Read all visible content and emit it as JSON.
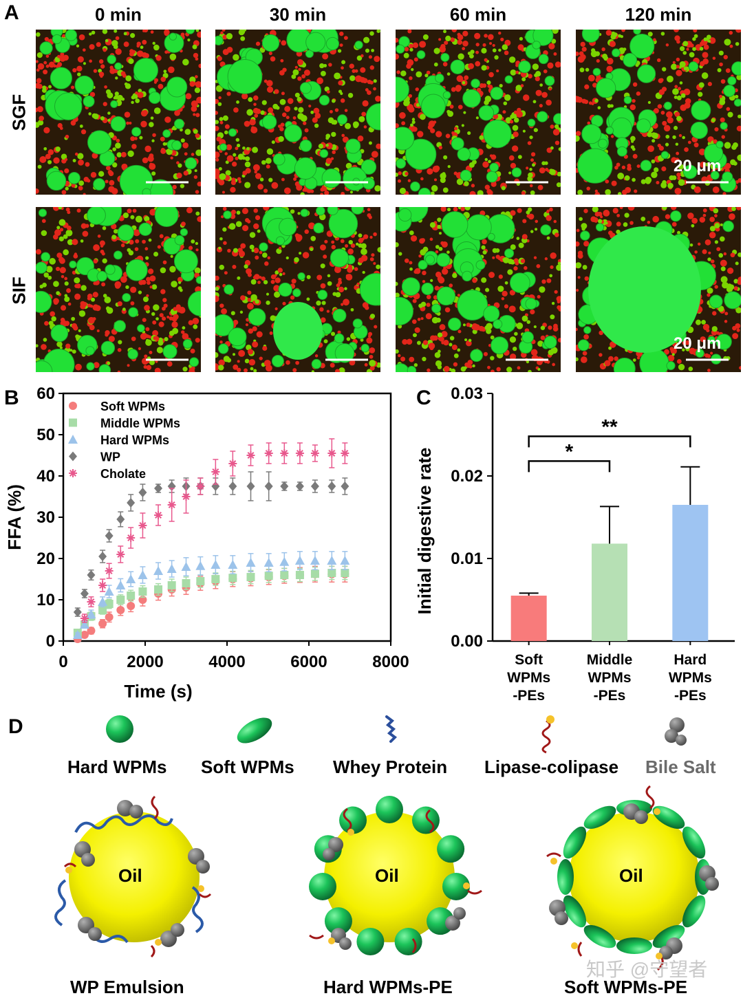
{
  "panelA": {
    "letter": "A",
    "columns": [
      "0 min",
      "30 min",
      "60 min",
      "120 min"
    ],
    "rows": [
      "SGF",
      "SIF"
    ],
    "scale_bar": "20 μm"
  },
  "panelB": {
    "letter": "B"
  },
  "panelC": {
    "letter": "C"
  },
  "panelD": {
    "letter": "D",
    "legend": [
      {
        "key": "hard",
        "label": "Hard WPMs"
      },
      {
        "key": "soft",
        "label": "Soft WPMs"
      },
      {
        "key": "whey",
        "label": "Whey Protein"
      },
      {
        "key": "lipase",
        "label": "Lipase-colipase"
      },
      {
        "key": "bile",
        "label": "Bile Salt"
      }
    ],
    "oil_label": "Oil",
    "emulsions": [
      "WP Emulsion",
      "Hard WPMs-PE",
      "Soft WPMs-PE"
    ]
  },
  "watermark": "知乎 @守望者",
  "chart_data": [
    {
      "id": "B",
      "type": "scatter",
      "title": "",
      "xlabel": "Time (s)",
      "ylabel": "FFA (%)",
      "xlim": [
        0,
        8000
      ],
      "ylim": [
        0,
        60
      ],
      "xticks": [
        0,
        2000,
        4000,
        6000,
        8000
      ],
      "yticks": [
        0,
        10,
        20,
        30,
        40,
        50,
        60
      ],
      "legend_position": "top-left",
      "series": [
        {
          "name": "Soft WPMs",
          "color": "#f47c7c",
          "marker": "circle",
          "x": [
            350,
            520,
            680,
            960,
            1120,
            1400,
            1650,
            1940,
            2320,
            2650,
            3000,
            3350,
            3720,
            4140,
            4580,
            5020,
            5400,
            5780,
            6150,
            6560,
            6880
          ],
          "y": [
            0.5,
            1.5,
            2.5,
            4.2,
            5.8,
            7.5,
            8.5,
            10,
            11.5,
            12.5,
            13,
            14,
            14.5,
            15,
            15.2,
            15.5,
            15.8,
            16,
            16.2,
            16.2,
            16.2
          ],
          "err": [
            0.5,
            0.6,
            0.8,
            1,
            1.2,
            1.3,
            1.4,
            1.5,
            1.6,
            1.6,
            1.7,
            1.7,
            1.8,
            1.8,
            1.8,
            1.8,
            1.8,
            1.8,
            1.9,
            1.9,
            1.9
          ]
        },
        {
          "name": "Middle WPMs",
          "color": "#a7dca7",
          "marker": "square",
          "x": [
            350,
            520,
            680,
            960,
            1120,
            1400,
            1650,
            1940,
            2320,
            2650,
            3000,
            3350,
            3720,
            4140,
            4580,
            5020,
            5400,
            5780,
            6150,
            6560,
            6880
          ],
          "y": [
            2,
            4,
            6,
            7.5,
            9,
            10,
            11,
            12,
            12.5,
            13.5,
            14,
            14.5,
            15,
            15.3,
            15.5,
            15.8,
            16,
            16,
            16.3,
            16.5,
            16.5
          ],
          "err": [
            0.6,
            0.8,
            1,
            1,
            1.1,
            1.2,
            1.3,
            1.4,
            1.4,
            1.5,
            1.5,
            1.5,
            1.5,
            1.6,
            1.6,
            1.6,
            1.6,
            1.6,
            1.6,
            1.6,
            1.6
          ]
        },
        {
          "name": "Hard WPMs",
          "color": "#9cc3ea",
          "marker": "triangle",
          "x": [
            350,
            520,
            680,
            960,
            1120,
            1400,
            1650,
            1940,
            2320,
            2650,
            3000,
            3350,
            3720,
            4140,
            4580,
            5020,
            5400,
            5780,
            6150,
            6560,
            6880
          ],
          "y": [
            1.5,
            4,
            6.5,
            9.5,
            12,
            13.5,
            15,
            16,
            17,
            17.5,
            18,
            18.2,
            18.5,
            18.5,
            19,
            19,
            19.2,
            19.5,
            19.5,
            19.5,
            19.5
          ],
          "err": [
            0.5,
            0.8,
            1,
            1.2,
            1.5,
            1.6,
            1.8,
            2,
            2,
            2,
            2.2,
            2.2,
            2.2,
            2.2,
            2.2,
            2.2,
            2.2,
            2.2,
            2.2,
            2.2,
            2.2
          ]
        },
        {
          "name": "WP",
          "color": "#7a7a7a",
          "marker": "diamond",
          "x": [
            350,
            520,
            680,
            960,
            1120,
            1400,
            1650,
            1940,
            2320,
            2650,
            3000,
            3350,
            3720,
            4140,
            4580,
            5020,
            5400,
            5780,
            6150,
            6560,
            6880
          ],
          "y": [
            7,
            11.5,
            16,
            20.5,
            25.5,
            29.5,
            33.5,
            36,
            37,
            37.5,
            37.5,
            37.5,
            37.5,
            37.5,
            37.5,
            37.5,
            37.5,
            37.5,
            37.5,
            37.5,
            37.5
          ],
          "err": [
            1,
            1,
            1.2,
            1.5,
            1.5,
            1.8,
            2,
            2,
            1,
            1.5,
            2,
            2,
            2,
            2,
            3.5,
            3.5,
            1,
            1,
            1.5,
            1.5,
            2
          ]
        },
        {
          "name": "Cholate",
          "color": "#e8588d",
          "marker": "asterisk",
          "x": [
            520,
            680,
            960,
            1120,
            1400,
            1650,
            1940,
            2320,
            2650,
            3000,
            3350,
            3720,
            4140,
            4580,
            5020,
            5400,
            5780,
            6150,
            6560,
            6880
          ],
          "y": [
            5.5,
            9.5,
            13.5,
            17,
            21,
            25,
            28,
            30.5,
            33,
            35,
            37.5,
            41,
            43,
            45,
            45.5,
            45.5,
            45.5,
            45.5,
            45.5,
            45.5
          ],
          "err": [
            1,
            1.2,
            1.5,
            1.8,
            2,
            2.5,
            3,
            2.5,
            4,
            4,
            2,
            3,
            3,
            2.5,
            2.5,
            2.5,
            2.5,
            2,
            3.5,
            2.5
          ]
        }
      ]
    },
    {
      "id": "C",
      "type": "bar",
      "title": "",
      "xlabel": "",
      "ylabel": "Initial digestive rate",
      "ylim": [
        0,
        0.03
      ],
      "yticks": [
        "0.00",
        "0.01",
        "0.02",
        "0.03"
      ],
      "categories": [
        [
          "Soft",
          "WPMs",
          "-PEs"
        ],
        [
          "Middle",
          "WPMs",
          "-PEs"
        ],
        [
          "Hard",
          "WPMs",
          "-PEs"
        ]
      ],
      "values": [
        0.0055,
        0.0118,
        0.0165
      ],
      "errors": [
        0.0003,
        0.0045,
        0.0046
      ],
      "colors": [
        "#f87b7b",
        "#b6e0b4",
        "#9ec4f2"
      ],
      "significance": [
        {
          "from": 0,
          "to": 1,
          "label": "*"
        },
        {
          "from": 0,
          "to": 2,
          "label": "**"
        }
      ]
    }
  ]
}
